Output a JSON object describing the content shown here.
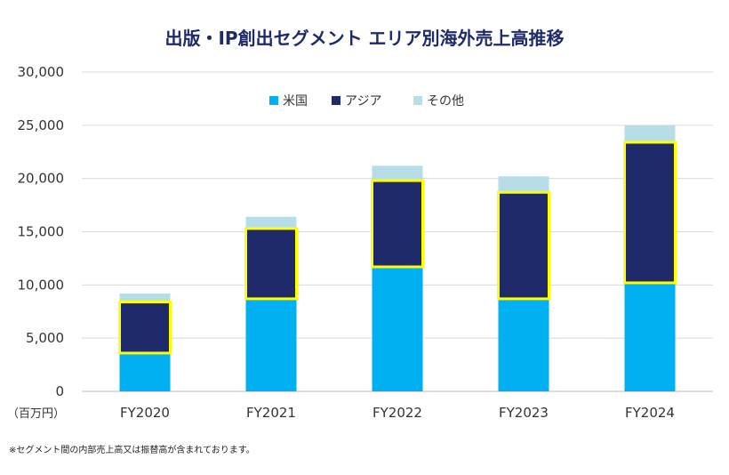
{
  "chart_data": {
    "type": "bar",
    "stacked": true,
    "title": "出版・IP創出セグメント エリア別海外売上高推移",
    "unit_label": "（百万円）",
    "categories": [
      "FY2020",
      "FY2021",
      "FY2022",
      "FY2023",
      "FY2024"
    ],
    "series": [
      {
        "name": "米国",
        "color": "#00b0f0",
        "values": [
          3600,
          8700,
          11700,
          8700,
          10200
        ]
      },
      {
        "name": "アジア",
        "color": "#1f2a6b",
        "values": [
          4800,
          6600,
          8100,
          10000,
          13200
        ]
      },
      {
        "name": "その他",
        "color": "#b7dde8",
        "values": [
          800,
          1100,
          1400,
          1500,
          1600
        ]
      }
    ],
    "highlight": {
      "series": "アジア",
      "outline_color": "#ffff00"
    },
    "ylim": [
      0,
      30000
    ],
    "yticks": [
      "0",
      "5,000",
      "10,000",
      "15,000",
      "20,000",
      "25,000",
      "30,000"
    ],
    "grid": true,
    "legend_position": "top-center",
    "footnote": "※セグメント間の内部売上高又は振替高が含まれております。"
  }
}
